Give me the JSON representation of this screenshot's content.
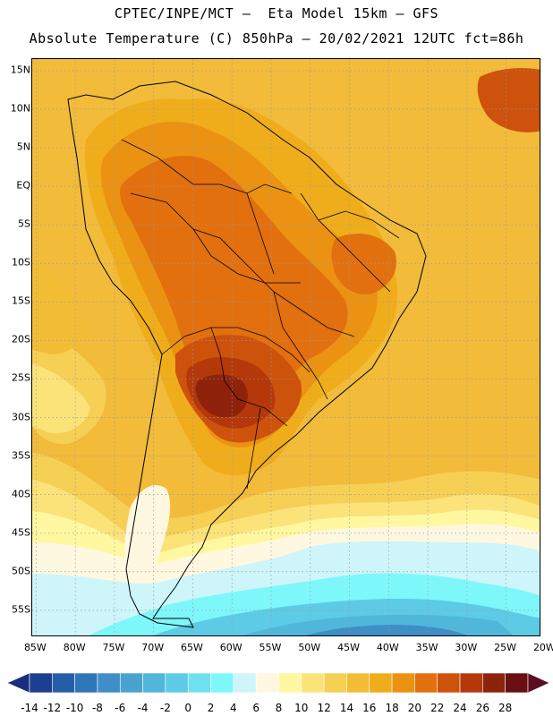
{
  "header": {
    "line1": "CPTEC/INPE/MCT —  Eta Model 15km — GFS",
    "line2": "Absolute Temperature (C) 850hPa — 20/02/2021 12UTC fct=86h"
  },
  "axes": {
    "lat_labels": [
      "15N",
      "10N",
      "5N",
      "EQ",
      "5S",
      "10S",
      "15S",
      "20S",
      "25S",
      "30S",
      "35S",
      "40S",
      "45S",
      "50S",
      "55S"
    ],
    "lat_values": [
      15,
      10,
      5,
      0,
      -5,
      -10,
      -15,
      -20,
      -25,
      -30,
      -35,
      -40,
      -45,
      -50,
      -55
    ],
    "lon_labels": [
      "85W",
      "80W",
      "75W",
      "70W",
      "65W",
      "60W",
      "55W",
      "50W",
      "45W",
      "40W",
      "35W",
      "30W",
      "25W",
      "20W"
    ],
    "lon_values": [
      -85,
      -80,
      -75,
      -70,
      -65,
      -60,
      -55,
      -50,
      -45,
      -40,
      -35,
      -30,
      -25,
      -20
    ],
    "lon_range": [
      -85.5,
      -20.5
    ],
    "lat_range": [
      -58.5,
      16.5
    ]
  },
  "colorbar": {
    "labels": [
      "-14",
      "-12",
      "-10",
      "-8",
      "-6",
      "-4",
      "-2",
      "0",
      "2",
      "4",
      "6",
      "8",
      "10",
      "12",
      "14",
      "16",
      "18",
      "20",
      "22",
      "24",
      "26",
      "28"
    ],
    "colors": [
      "#1d3f8f",
      "#245ea8",
      "#2f76b8",
      "#3f8fc6",
      "#4aa3cf",
      "#50b7db",
      "#5dcbe5",
      "#70e0ee",
      "#7ef7fb",
      "#cdf5fa",
      "#fff8e0",
      "#fff8a0",
      "#fbe37a",
      "#f6cf55",
      "#f2bd35",
      "#f0ad1b",
      "#eb9212",
      "#e2700e",
      "#cd520c",
      "#b4380a",
      "#8e220a",
      "#6a0f12"
    ],
    "under_color": "#1a2f7a",
    "over_color": "#5a0d1e"
  },
  "map": {
    "background_color": "#f2bb3a",
    "colors": {
      "c26": "#8e220a",
      "c24": "#b4380a",
      "c22": "#cd520c",
      "c20": "#e2700e",
      "c18": "#eb9212",
      "c16": "#f0ad1b",
      "c14": "#f2bd35",
      "c12": "#f6cf55",
      "c10": "#fbe37a",
      "c8": "#fff8a0",
      "c6": "#fff8e0",
      "c4": "#cdf5fa",
      "c2": "#7ef7fb",
      "c0": "#5dcbe5",
      "cm2": "#50b7db",
      "cm4": "#3f8fc6"
    }
  }
}
